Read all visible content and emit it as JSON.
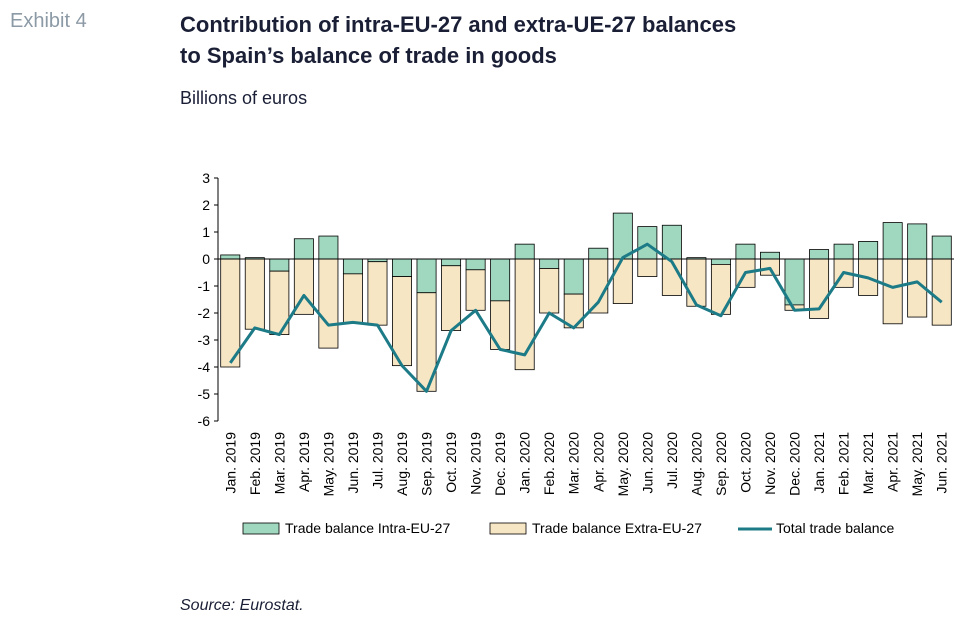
{
  "header": {
    "exhibit": "Exhibit 4",
    "title_line1": "Contribution of intra-EU-27 and extra-UE-27 balances",
    "title_line2": "to Spain’s balance of trade in goods",
    "subtitle": "Billions of euros"
  },
  "footer": {
    "source": "Source: Eurostat."
  },
  "colors": {
    "intra": "#9fd7bf",
    "extra": "#f7e6c4",
    "total": "#1c7b86",
    "border": "#000000"
  },
  "chart_data": {
    "type": "bar",
    "stacked": true,
    "categories": [
      "Jan. 2019",
      "Feb. 2019",
      "Mar. 2019",
      "Apr. 2019",
      "May. 2019",
      "Jun. 2019",
      "Jul. 2019",
      "Aug. 2019",
      "Sep. 2019",
      "Oct. 2019",
      "Nov. 2019",
      "Dec. 2019",
      "Jan. 2020",
      "Feb. 2020",
      "Mar. 2020",
      "Apr. 2020",
      "May. 2020",
      "Jun. 2020",
      "Jul. 2020",
      "Aug. 2020",
      "Sep. 2020",
      "Oct. 2020",
      "Nov. 2020",
      "Dec. 2020",
      "Jan. 2021",
      "Feb. 2021",
      "Mar. 2021",
      "Apr. 2021",
      "May. 2021",
      "Jun. 2021"
    ],
    "series": [
      {
        "name": "Trade balance Intra-EU-27",
        "type": "bar",
        "values": [
          0.15,
          0.05,
          -0.45,
          0.75,
          0.85,
          -0.55,
          -0.1,
          -0.65,
          -1.25,
          -0.25,
          -0.4,
          -1.55,
          0.55,
          -0.35,
          -1.3,
          0.4,
          1.7,
          1.2,
          1.25,
          0.05,
          -0.2,
          0.55,
          0.25,
          -1.7,
          0.35,
          0.55,
          0.65,
          1.35,
          1.3,
          0.85
        ]
      },
      {
        "name": "Trade balance Extra-EU-27",
        "type": "bar",
        "values": [
          -4.0,
          -2.6,
          -2.35,
          -2.05,
          -3.3,
          -1.8,
          -2.35,
          -3.3,
          -3.65,
          -2.4,
          -1.5,
          -1.8,
          -4.1,
          -1.65,
          -1.25,
          -2.0,
          -1.65,
          -0.65,
          -1.35,
          -1.75,
          -1.85,
          -1.05,
          -0.6,
          -0.2,
          -2.2,
          -1.05,
          -1.35,
          -2.4,
          -2.15,
          -2.45
        ]
      },
      {
        "name": "Total trade balance",
        "type": "line",
        "values": [
          -3.85,
          -2.55,
          -2.8,
          -1.35,
          -2.45,
          -2.35,
          -2.45,
          -3.95,
          -4.9,
          -2.65,
          -1.9,
          -3.35,
          -3.55,
          -2.0,
          -2.55,
          -1.6,
          0.05,
          0.55,
          -0.1,
          -1.7,
          -2.1,
          -0.5,
          -0.35,
          -1.9,
          -1.85,
          -0.5,
          -0.7,
          -1.05,
          -0.85,
          -1.6
        ]
      }
    ],
    "ylim": [
      -6,
      3
    ],
    "yticks": [
      3,
      2,
      1,
      0,
      -1,
      -2,
      -3,
      -4,
      -5,
      -6
    ],
    "legend_position": "bottom",
    "grid": false
  }
}
